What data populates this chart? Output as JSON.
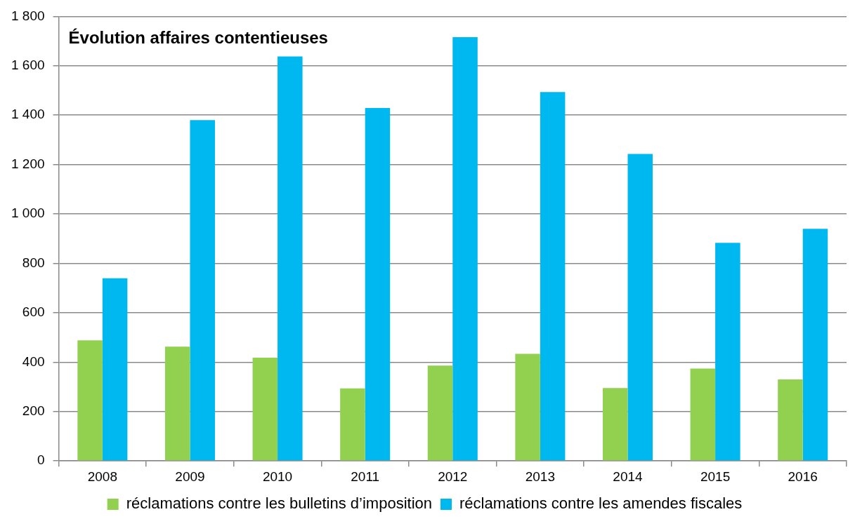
{
  "chart_data": {
    "type": "bar",
    "title": "Évolution affaires contentieuses",
    "categories": [
      "2008",
      "2009",
      "2010",
      "2011",
      "2012",
      "2013",
      "2014",
      "2015",
      "2016"
    ],
    "series": [
      {
        "name": "réclamations contre les bulletins d’imposition",
        "color": "#92d050",
        "values": [
          488,
          463,
          418,
          294,
          386,
          434,
          295,
          374,
          330
        ]
      },
      {
        "name": "réclamations contre les amendes fiscales",
        "color": "#00b8f0",
        "values": [
          740,
          1380,
          1638,
          1429,
          1716,
          1494,
          1243,
          883,
          940
        ]
      }
    ],
    "ylim": [
      0,
      1800
    ],
    "yticks": [
      0,
      200,
      400,
      600,
      800,
      {
        "value": 1000,
        "label": "1 000"
      },
      {
        "value": 1200,
        "label": "1 200"
      },
      {
        "value": 1400,
        "label": "1 400"
      },
      {
        "value": 1600,
        "label": "1 600"
      },
      {
        "value": 1800,
        "label": "1 800"
      }
    ],
    "grid": "y",
    "legend": "bottom"
  }
}
